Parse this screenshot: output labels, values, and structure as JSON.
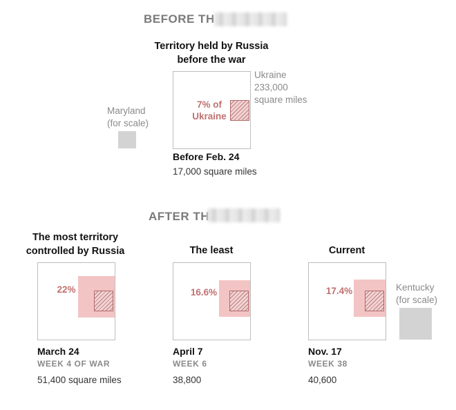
{
  "before_section": {
    "heading": "BEFORE TH"
  },
  "after_section": {
    "heading": "AFTER TH"
  },
  "colors": {
    "territory": "#f3c4c4",
    "hatch_edge": "#b06a6a",
    "percent_text": "#c07070",
    "reference_square": "#d3d3d3",
    "box_border": "#bdbdbd"
  },
  "chart_data": {
    "type": "proportional-area",
    "reference_areas": [
      {
        "label": "Ukraine",
        "value": "233,000",
        "unit": "square miles"
      },
      {
        "label": "Maryland",
        "note": "(for scale)"
      },
      {
        "label": "Kentucky",
        "note": "(for scale)"
      }
    ],
    "panels": [
      {
        "title": "Territory held by Russia before the war",
        "percent_label": "7% of Ukraine",
        "date": "Before Feb. 24",
        "week": "",
        "area": "17,000 square miles",
        "square_miles": 17000,
        "percent": 7
      },
      {
        "title": "The most territory controlled by Russia",
        "percent_label": "22%",
        "date": "March 24",
        "week": "WEEK 4 OF WAR",
        "area": "51,400 square miles",
        "square_miles": 51400,
        "percent": 22
      },
      {
        "title": "The least",
        "percent_label": "16.6%",
        "date": "April 7",
        "week": "WEEK 6",
        "area": "38,800",
        "square_miles": 38800,
        "percent": 16.6
      },
      {
        "title": "Current",
        "percent_label": "17.4%",
        "date": "Nov. 17",
        "week": "WEEK 38",
        "area": "40,600",
        "square_miles": 40600,
        "percent": 17.4
      }
    ]
  }
}
